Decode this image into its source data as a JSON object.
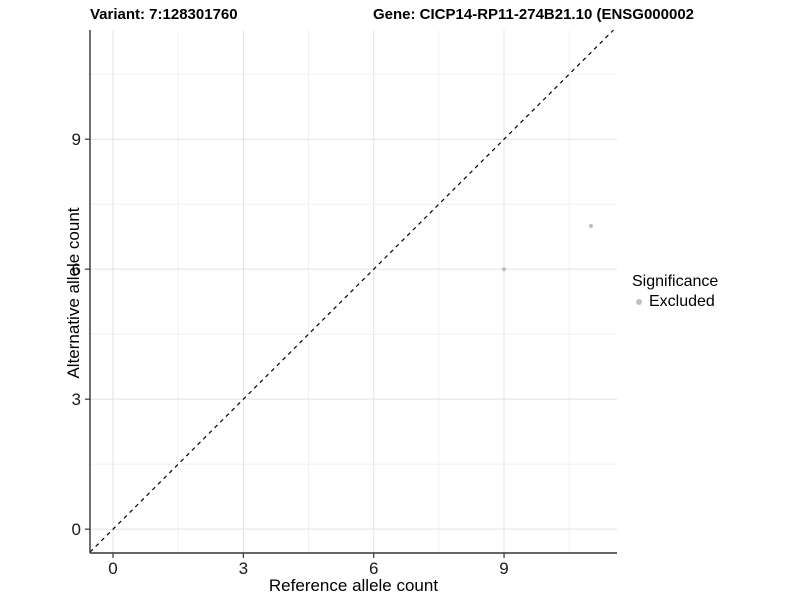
{
  "titles": {
    "variant": "Variant: 7:128301760",
    "gene": "Gene: CICP14-RP11-274B21.10 (ENSG000002"
  },
  "chart_data": {
    "type": "scatter",
    "xlabel": "Reference allele count",
    "ylabel": "Alternative allele count",
    "x_ticks": [
      0,
      3,
      6,
      9
    ],
    "y_ticks": [
      0,
      3,
      6,
      9
    ],
    "x_minor_breaks": [
      1.5,
      4.5,
      7.5,
      10.5
    ],
    "y_minor_breaks": [
      1.5,
      4.5,
      7.5,
      10.5
    ],
    "xlim": [
      -0.53,
      11.6
    ],
    "ylim": [
      -0.55,
      11.52
    ],
    "grid": true,
    "reference_line": {
      "slope": 1,
      "intercept": 0,
      "style": "dashed"
    },
    "series": [
      {
        "name": "Excluded",
        "points": [
          {
            "x": 9,
            "y": 6
          },
          {
            "x": 11,
            "y": 7
          }
        ]
      }
    ],
    "legend": {
      "title": "Significance",
      "position": "right",
      "entries": [
        {
          "label": "Excluded",
          "color": "#bfbfbf"
        }
      ]
    }
  },
  "colors": {
    "point": "#bfbfbf",
    "grid_major": "#e2e2e2",
    "grid_minor": "#f1f1f1",
    "axis_line": "#333333",
    "tick_label": "#1a1a1a",
    "reference_line": "#000000"
  }
}
